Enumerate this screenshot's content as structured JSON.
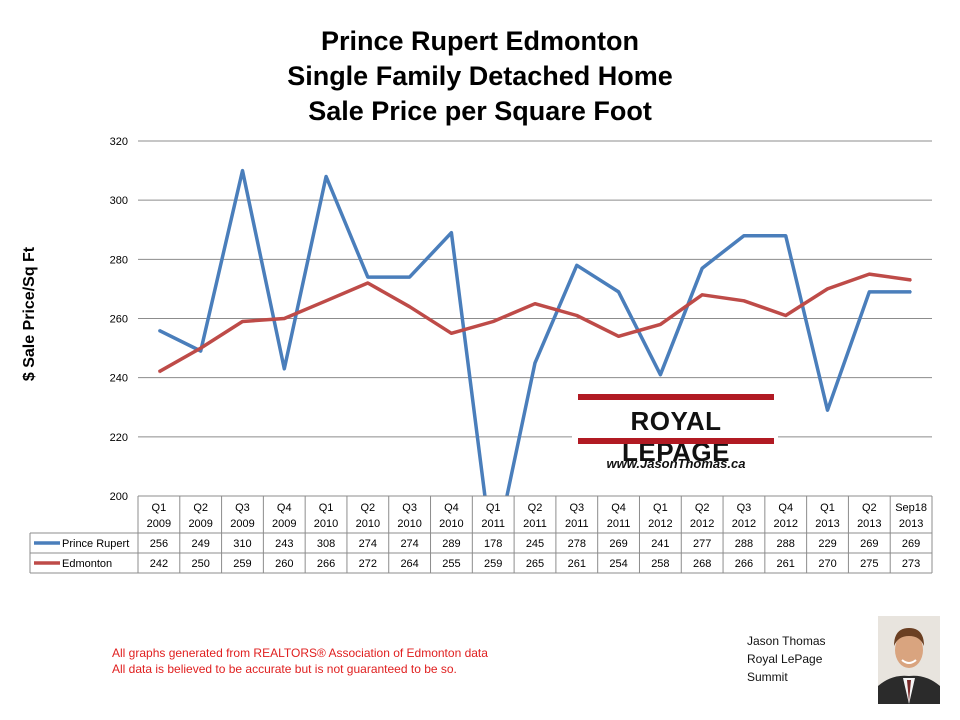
{
  "title_lines": [
    "Prince Rupert Edmonton",
    "Single Family Detached Home",
    "Sale Price per Square Foot"
  ],
  "logo": {
    "brand": "ROYAL LEPAGE",
    "website": "www.JasonThomas.ca"
  },
  "footnote": [
    "All graphs generated from REALTORS® Association of Edmonton data",
    "All data is believed to be accurate but is not guaranteed to be so."
  ],
  "agent": [
    "Jason Thomas",
    "Royal LePage",
    "Summit"
  ],
  "colors": {
    "prince_rupert": "#4a7ebb",
    "edmonton": "#be4b48",
    "grid": "#8c8c8c"
  },
  "chart_data": {
    "type": "line",
    "title": "Prince Rupert Edmonton Single Family Detached Home Sale Price per Square Foot",
    "ylabel": "$ Sale Price/Sq Ft",
    "xlabel": "",
    "ylim": [
      200,
      320
    ],
    "yticks": [
      200,
      220,
      240,
      260,
      280,
      300,
      320
    ],
    "grid": true,
    "legend": "data-table",
    "categories": [
      [
        "Q1",
        "2009"
      ],
      [
        "Q2",
        "2009"
      ],
      [
        "Q3",
        "2009"
      ],
      [
        "Q4",
        "2009"
      ],
      [
        "Q1",
        "2010"
      ],
      [
        "Q2",
        "2010"
      ],
      [
        "Q3",
        "2010"
      ],
      [
        "Q4",
        "2010"
      ],
      [
        "Q1",
        "2011"
      ],
      [
        "Q2",
        "2011"
      ],
      [
        "Q3",
        "2011"
      ],
      [
        "Q4",
        "2011"
      ],
      [
        "Q1",
        "2012"
      ],
      [
        "Q2",
        "2012"
      ],
      [
        "Q3",
        "2012"
      ],
      [
        "Q4",
        "2012"
      ],
      [
        "Q1",
        "2013"
      ],
      [
        "Q2",
        "2013"
      ],
      [
        "Sep18",
        "2013"
      ]
    ],
    "series": [
      {
        "name": "Prince Rupert",
        "color": "#4a7ebb",
        "values": [
          256,
          249,
          310,
          243,
          308,
          274,
          274,
          289,
          178,
          245,
          278,
          269,
          241,
          277,
          288,
          288,
          229,
          269,
          269
        ]
      },
      {
        "name": "Edmonton",
        "color": "#be4b48",
        "values": [
          242,
          250,
          259,
          260,
          266,
          272,
          264,
          255,
          259,
          265,
          261,
          254,
          258,
          268,
          266,
          261,
          270,
          275,
          273
        ]
      }
    ]
  }
}
